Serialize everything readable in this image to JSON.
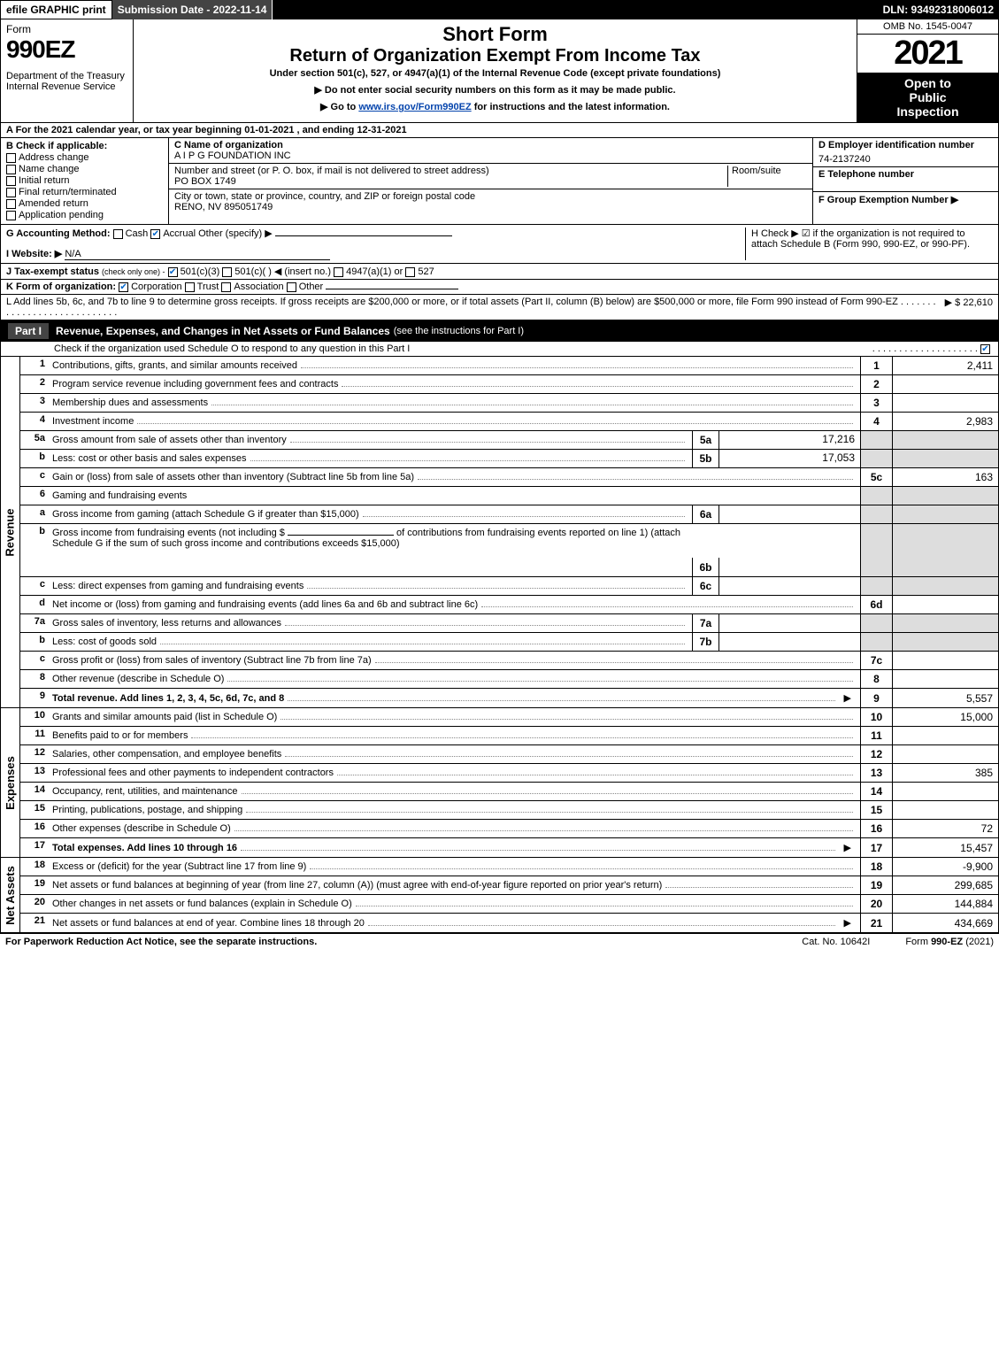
{
  "topbar": {
    "efile": "efile GRAPHIC print",
    "subdate": "Submission Date - 2022-11-14",
    "dln": "DLN: 93492318006012"
  },
  "header": {
    "form_word": "Form",
    "form_num": "990EZ",
    "dept1": "Department of the Treasury",
    "dept2": "Internal Revenue Service",
    "short_form": "Short Form",
    "return_title": "Return of Organization Exempt From Income Tax",
    "under": "Under section 501(c), 527, or 4947(a)(1) of the Internal Revenue Code (except private foundations)",
    "note1_pre": "▶ Do not enter social security numbers on this form as it may be made public.",
    "note2_pre": "▶ Go to ",
    "note2_link": "www.irs.gov/Form990EZ",
    "note2_post": " for instructions and the latest information.",
    "omb": "OMB No. 1545-0047",
    "year": "2021",
    "open1": "Open to",
    "open2": "Public",
    "open3": "Inspection"
  },
  "rowA": "A  For the 2021 calendar year, or tax year beginning 01-01-2021 , and ending 12-31-2021",
  "sectionB": {
    "label": "B  Check if applicable:",
    "addr_change": "Address change",
    "name_change": "Name change",
    "initial": "Initial return",
    "final": "Final return/terminated",
    "amended": "Amended return",
    "app_pending": "Application pending"
  },
  "sectionC": {
    "name_lbl": "C Name of organization",
    "name_val": "A I P G FOUNDATION INC",
    "street_lbl": "Number and street (or P. O. box, if mail is not delivered to street address)",
    "room_lbl": "Room/suite",
    "street_val": "PO BOX 1749",
    "city_lbl": "City or town, state or province, country, and ZIP or foreign postal code",
    "city_val": "RENO, NV  895051749"
  },
  "sectionD": {
    "ein_lbl": "D Employer identification number",
    "ein_val": "74-2137240",
    "tel_lbl": "E Telephone number",
    "grp_lbl": "F Group Exemption Number   ▶"
  },
  "rowG": {
    "label": "G Accounting Method:",
    "cash": "Cash",
    "accrual": "Accrual",
    "other": "Other (specify) ▶",
    "website_lbl": "I Website: ▶",
    "website_val": "N/A",
    "h_text": "H  Check ▶  ☑  if the organization is not required to attach Schedule B (Form 990, 990-EZ, or 990-PF)."
  },
  "rowJ": {
    "label": "J Tax-exempt status",
    "sub": "(check only one) -",
    "o1": "501(c)(3)",
    "o2": "501(c)(   ) ◀ (insert no.)",
    "o3": "4947(a)(1) or",
    "o4": "527"
  },
  "rowK": {
    "label": "K Form of organization:",
    "corp": "Corporation",
    "trust": "Trust",
    "assoc": "Association",
    "other": "Other"
  },
  "rowL": {
    "text": "L Add lines 5b, 6c, and 7b to line 9 to determine gross receipts. If gross receipts are $200,000 or more, or if total assets (Part II, column (B) below) are $500,000 or more, file Form 990 instead of Form 990-EZ",
    "val": "▶ $ 22,610"
  },
  "part1": {
    "lbl": "Part I",
    "title": "Revenue, Expenses, and Changes in Net Assets or Fund Balances",
    "sub": "(see the instructions for Part I)",
    "note": "Check if the organization used Schedule O to respond to any question in this Part I"
  },
  "sections": {
    "revenue": "Revenue",
    "expenses": "Expenses",
    "netassets": "Net Assets"
  },
  "revenue_lines": [
    {
      "n": "1",
      "d": "Contributions, gifts, grants, and similar amounts received",
      "cn": "1",
      "v": "2,411"
    },
    {
      "n": "2",
      "d": "Program service revenue including government fees and contracts",
      "cn": "2",
      "v": ""
    },
    {
      "n": "3",
      "d": "Membership dues and assessments",
      "cn": "3",
      "v": ""
    },
    {
      "n": "4",
      "d": "Investment income",
      "cn": "4",
      "v": "2,983"
    }
  ],
  "line5a": {
    "n": "5a",
    "d": "Gross amount from sale of assets other than inventory",
    "sn": "5a",
    "sv": "17,216"
  },
  "line5b": {
    "n": "b",
    "d": "Less: cost or other basis and sales expenses",
    "sn": "5b",
    "sv": "17,053"
  },
  "line5c": {
    "n": "c",
    "d": "Gain or (loss) from sale of assets other than inventory (Subtract line 5b from line 5a)",
    "cn": "5c",
    "v": "163"
  },
  "line6": {
    "n": "6",
    "d": "Gaming and fundraising events"
  },
  "line6a": {
    "n": "a",
    "d": "Gross income from gaming (attach Schedule G if greater than $15,000)",
    "sn": "6a",
    "sv": ""
  },
  "line6b": {
    "n": "b",
    "d1": "Gross income from fundraising events (not including $",
    "d2": "of contributions from fundraising events reported on line 1) (attach Schedule G if the sum of such gross income and contributions exceeds $15,000)",
    "sn": "6b",
    "sv": ""
  },
  "line6c": {
    "n": "c",
    "d": "Less: direct expenses from gaming and fundraising events",
    "sn": "6c",
    "sv": ""
  },
  "line6d": {
    "n": "d",
    "d": "Net income or (loss) from gaming and fundraising events (add lines 6a and 6b and subtract line 6c)",
    "cn": "6d",
    "v": ""
  },
  "line7a": {
    "n": "7a",
    "d": "Gross sales of inventory, less returns and allowances",
    "sn": "7a",
    "sv": ""
  },
  "line7b": {
    "n": "b",
    "d": "Less: cost of goods sold",
    "sn": "7b",
    "sv": ""
  },
  "line7c": {
    "n": "c",
    "d": "Gross profit or (loss) from sales of inventory (Subtract line 7b from line 7a)",
    "cn": "7c",
    "v": ""
  },
  "line8": {
    "n": "8",
    "d": "Other revenue (describe in Schedule O)",
    "cn": "8",
    "v": ""
  },
  "line9": {
    "n": "9",
    "d": "Total revenue. Add lines 1, 2, 3, 4, 5c, 6d, 7c, and 8",
    "cn": "9",
    "v": "5,557",
    "bold": true,
    "arrow": true
  },
  "expense_lines": [
    {
      "n": "10",
      "d": "Grants and similar amounts paid (list in Schedule O)",
      "cn": "10",
      "v": "15,000"
    },
    {
      "n": "11",
      "d": "Benefits paid to or for members",
      "cn": "11",
      "v": ""
    },
    {
      "n": "12",
      "d": "Salaries, other compensation, and employee benefits",
      "cn": "12",
      "v": ""
    },
    {
      "n": "13",
      "d": "Professional fees and other payments to independent contractors",
      "cn": "13",
      "v": "385"
    },
    {
      "n": "14",
      "d": "Occupancy, rent, utilities, and maintenance",
      "cn": "14",
      "v": ""
    },
    {
      "n": "15",
      "d": "Printing, publications, postage, and shipping",
      "cn": "15",
      "v": ""
    },
    {
      "n": "16",
      "d": "Other expenses (describe in Schedule O)",
      "cn": "16",
      "v": "72"
    },
    {
      "n": "17",
      "d": "Total expenses. Add lines 10 through 16",
      "cn": "17",
      "v": "15,457",
      "bold": true,
      "arrow": true
    }
  ],
  "net_lines": [
    {
      "n": "18",
      "d": "Excess or (deficit) for the year (Subtract line 17 from line 9)",
      "cn": "18",
      "v": "-9,900"
    },
    {
      "n": "19",
      "d": "Net assets or fund balances at beginning of year (from line 27, column (A)) (must agree with end-of-year figure reported on prior year's return)",
      "cn": "19",
      "v": "299,685"
    },
    {
      "n": "20",
      "d": "Other changes in net assets or fund balances (explain in Schedule O)",
      "cn": "20",
      "v": "144,884"
    },
    {
      "n": "21",
      "d": "Net assets or fund balances at end of year. Combine lines 18 through 20",
      "cn": "21",
      "v": "434,669",
      "arrow": true
    }
  ],
  "footer": {
    "left": "For Paperwork Reduction Act Notice, see the separate instructions.",
    "mid": "Cat. No. 10642I",
    "right_pre": "Form ",
    "right_bold": "990-EZ",
    "right_post": " (2021)"
  }
}
